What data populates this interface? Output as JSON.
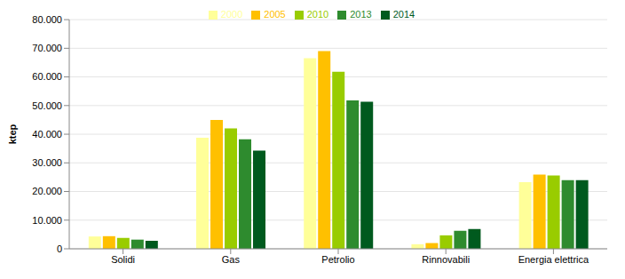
{
  "chart_data": {
    "type": "bar",
    "y_label": "ktep",
    "categories": [
      "Solidi",
      "Gas",
      "Petrolio",
      "Rinnovabili",
      "Energia elettrica"
    ],
    "series": [
      {
        "name": "2000",
        "color": "#FFFF99",
        "values": [
          4300,
          38800,
          66500,
          1600,
          23300
        ]
      },
      {
        "name": "2005",
        "color": "#FFC000",
        "values": [
          4400,
          45000,
          69000,
          2000,
          25900
        ]
      },
      {
        "name": "2010",
        "color": "#99CC00",
        "values": [
          3800,
          42000,
          61800,
          4700,
          25600
        ]
      },
      {
        "name": "2013",
        "color": "#2E8B2E",
        "values": [
          3200,
          38200,
          51800,
          6300,
          24000
        ]
      },
      {
        "name": "2014",
        "color": "#005A1E",
        "values": [
          2800,
          34300,
          51300,
          6900,
          24000
        ]
      }
    ],
    "ylim": [
      0,
      80000
    ],
    "yticks": [
      0,
      {
        "value": 10000,
        "label": "10.000"
      },
      {
        "value": 20000,
        "label": "20.000"
      },
      {
        "value": 30000,
        "label": "30.000"
      },
      {
        "value": 40000,
        "label": "40.000"
      },
      {
        "value": 50000,
        "label": "50.000"
      },
      {
        "value": 60000,
        "label": "60.000"
      },
      {
        "value": 70000,
        "label": "70.000"
      },
      {
        "value": 80000,
        "label": "80.000"
      }
    ],
    "grid": true,
    "legend": "top"
  }
}
